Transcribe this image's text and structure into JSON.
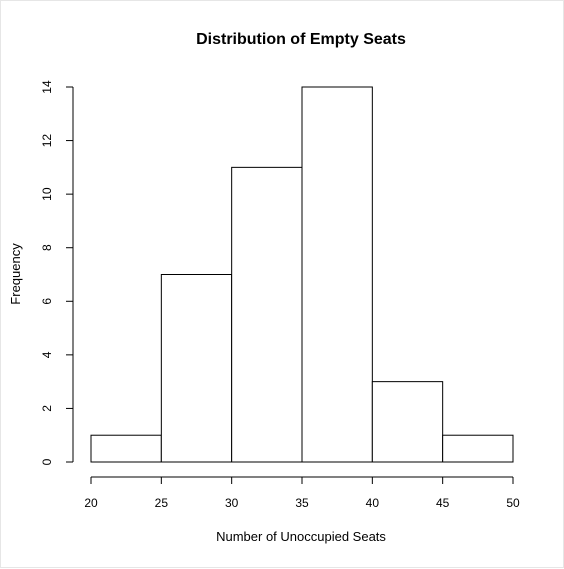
{
  "chart_data": {
    "type": "bar",
    "title": "Distribution of Empty Seats",
    "xlabel": "Number of Unoccupied Seats",
    "ylabel": "Frequency",
    "bins": [
      {
        "start": 20,
        "end": 25,
        "count": 1
      },
      {
        "start": 25,
        "end": 30,
        "count": 7
      },
      {
        "start": 30,
        "end": 35,
        "count": 11
      },
      {
        "start": 35,
        "end": 40,
        "count": 14
      },
      {
        "start": 40,
        "end": 45,
        "count": 3
      },
      {
        "start": 45,
        "end": 50,
        "count": 1
      }
    ],
    "xlim": [
      20,
      50
    ],
    "ylim": [
      0,
      14
    ],
    "x_ticks": [
      20,
      25,
      30,
      35,
      40,
      45,
      50
    ],
    "y_ticks": [
      0,
      2,
      4,
      6,
      8,
      10,
      12,
      14
    ],
    "grid": false,
    "bar_fill": "#ffffff",
    "bar_stroke": "#000000"
  }
}
